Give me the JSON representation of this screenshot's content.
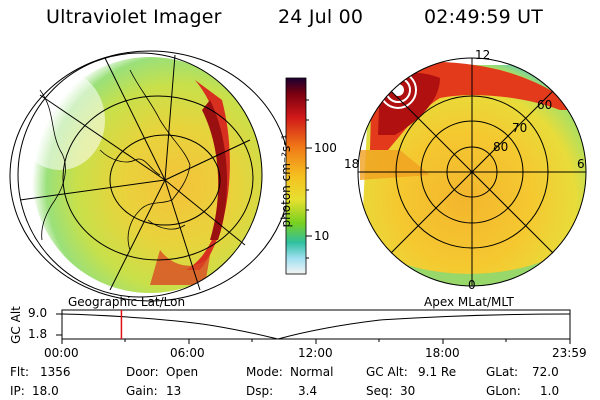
{
  "header": {
    "instrument": "Ultraviolet Imager",
    "date": "24 Jul 00",
    "time": "02:49:59 UT"
  },
  "colorbar": {
    "unit_label": "photon cm⁻²s⁻¹",
    "ticks": [
      "100",
      "10"
    ],
    "scale": "log"
  },
  "left_panel": {
    "label": "Geographic Lat/Lon"
  },
  "right_panel": {
    "label": "Apex MLat/MLT",
    "mlt_labels": {
      "top": "12",
      "left": "18",
      "right": "6",
      "bottom": "0"
    },
    "lat_labels": [
      "60",
      "70",
      "80"
    ]
  },
  "timeline": {
    "y_axis_label": "GC Alt",
    "y_ticks": [
      "9.0",
      "1.8"
    ],
    "x_ticks": [
      "00:00",
      "06:00",
      "12:00",
      "18:00",
      "23:59"
    ],
    "marker_time": "02:49:59",
    "marker_fraction": 0.117
  },
  "status": {
    "flt_label": "Flt:",
    "flt_value": "1356",
    "ip_label": "IP:",
    "ip_value": "18.0",
    "door_label": "Door:",
    "door_value": "Open",
    "gain_label": "Gain:",
    "gain_value": "13",
    "mode_label": "Mode:",
    "mode_value": "Normal",
    "dsp_label": "Dsp:",
    "dsp_value": "3.4",
    "gcalt_label": "GC Alt:",
    "gcalt_value": "9.1 Re",
    "seq_label": "Seq:",
    "seq_value": "30",
    "glat_label": "GLat:",
    "glat_value": "72.0",
    "glon_label": "GLon:",
    "glon_value": "1.0"
  }
}
